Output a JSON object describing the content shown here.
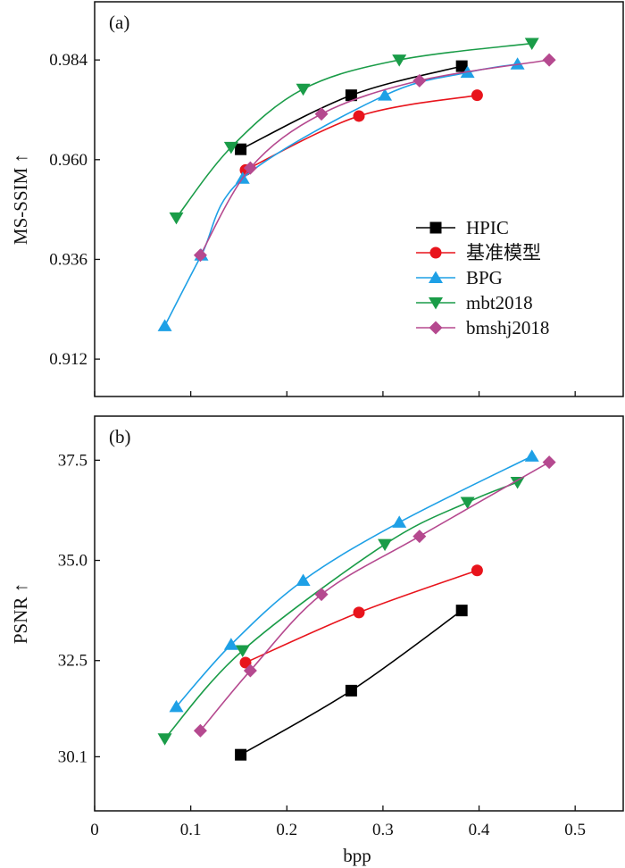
{
  "chart_data": [
    {
      "type": "line",
      "panel_label": "(a)",
      "xlabel": "",
      "ylabel": "MS-SSIM ↑",
      "xlim": [
        0,
        0.55
      ],
      "ylim": [
        0.903,
        0.998
      ],
      "y_ticks": [
        0.912,
        0.936,
        0.96,
        0.984
      ],
      "y_tick_labels": [
        "0.912",
        "0.936",
        "0.960",
        "0.984"
      ],
      "x_ticks": [
        0,
        0.1,
        0.2,
        0.3,
        0.4,
        0.5
      ],
      "x_tick_labels": [],
      "grid": false,
      "legend": {
        "placement": "center-right",
        "entries": [
          "HPIC",
          "基准模型",
          "BPG",
          "mbt2018",
          "bmshj2018"
        ]
      },
      "series": [
        {
          "name": "HPIC",
          "color": "#000000",
          "marker": "square",
          "x": [
            0.152,
            0.267,
            0.382
          ],
          "y": [
            0.9625,
            0.9755,
            0.9825
          ]
        },
        {
          "name": "基准模型",
          "color": "#e8141c",
          "marker": "circle",
          "x": [
            0.157,
            0.275,
            0.398
          ],
          "y": [
            0.9575,
            0.9705,
            0.9755
          ]
        },
        {
          "name": "BPG",
          "color": "#1ea0e6",
          "marker": "triangle-up",
          "x": [
            0.073,
            0.111,
            0.154,
            0.302,
            0.388,
            0.44
          ],
          "y": [
            0.92,
            0.937,
            0.9555,
            0.9755,
            0.981,
            0.983
          ]
        },
        {
          "name": "mbt2018",
          "color": "#1a9c48",
          "marker": "triangle-down",
          "x": [
            0.085,
            0.142,
            0.217,
            0.317,
            0.455
          ],
          "y": [
            0.946,
            0.963,
            0.977,
            0.984,
            0.988
          ]
        },
        {
          "name": "bmshj2018",
          "color": "#b5498f",
          "marker": "diamond",
          "x": [
            0.11,
            0.162,
            0.236,
            0.338,
            0.473
          ],
          "y": [
            0.937,
            0.958,
            0.971,
            0.979,
            0.984
          ]
        }
      ]
    },
    {
      "type": "line",
      "panel_label": "(b)",
      "xlabel": "bpp",
      "ylabel": "PSNR ↑",
      "xlim": [
        0,
        0.55
      ],
      "ylim": [
        28.75,
        38.6
      ],
      "y_ticks": [
        30.1,
        32.5,
        35.0,
        37.5
      ],
      "y_tick_labels": [
        "30.1",
        "32.5",
        "35.0",
        "37.5"
      ],
      "x_ticks": [
        0,
        0.1,
        0.2,
        0.3,
        0.4,
        0.5
      ],
      "x_tick_labels": [
        "0",
        "0.1",
        "0.2",
        "0.3",
        "0.4",
        "0.5"
      ],
      "grid": false,
      "series": [
        {
          "name": "HPIC",
          "color": "#000000",
          "marker": "square",
          "x": [
            0.152,
            0.267,
            0.382
          ],
          "y": [
            30.15,
            31.75,
            33.75
          ]
        },
        {
          "name": "基准模型",
          "color": "#e8141c",
          "marker": "circle",
          "x": [
            0.157,
            0.275,
            0.398
          ],
          "y": [
            32.45,
            33.7,
            34.75
          ]
        },
        {
          "name": "BPG",
          "color": "#1ea0e6",
          "marker": "triangle-up",
          "x": [
            0.085,
            0.142,
            0.217,
            0.317,
            0.455
          ],
          "y": [
            31.35,
            32.9,
            34.5,
            35.95,
            37.6
          ]
        },
        {
          "name": "mbt2018",
          "color": "#1a9c48",
          "marker": "triangle-down",
          "x": [
            0.073,
            0.154,
            0.302,
            0.388,
            0.44
          ],
          "y": [
            30.55,
            32.75,
            35.4,
            36.45,
            36.95
          ]
        },
        {
          "name": "bmshj2018",
          "color": "#b5498f",
          "marker": "diamond",
          "x": [
            0.11,
            0.162,
            0.236,
            0.338,
            0.473
          ],
          "y": [
            30.75,
            32.25,
            34.15,
            35.6,
            37.45
          ]
        }
      ]
    }
  ]
}
